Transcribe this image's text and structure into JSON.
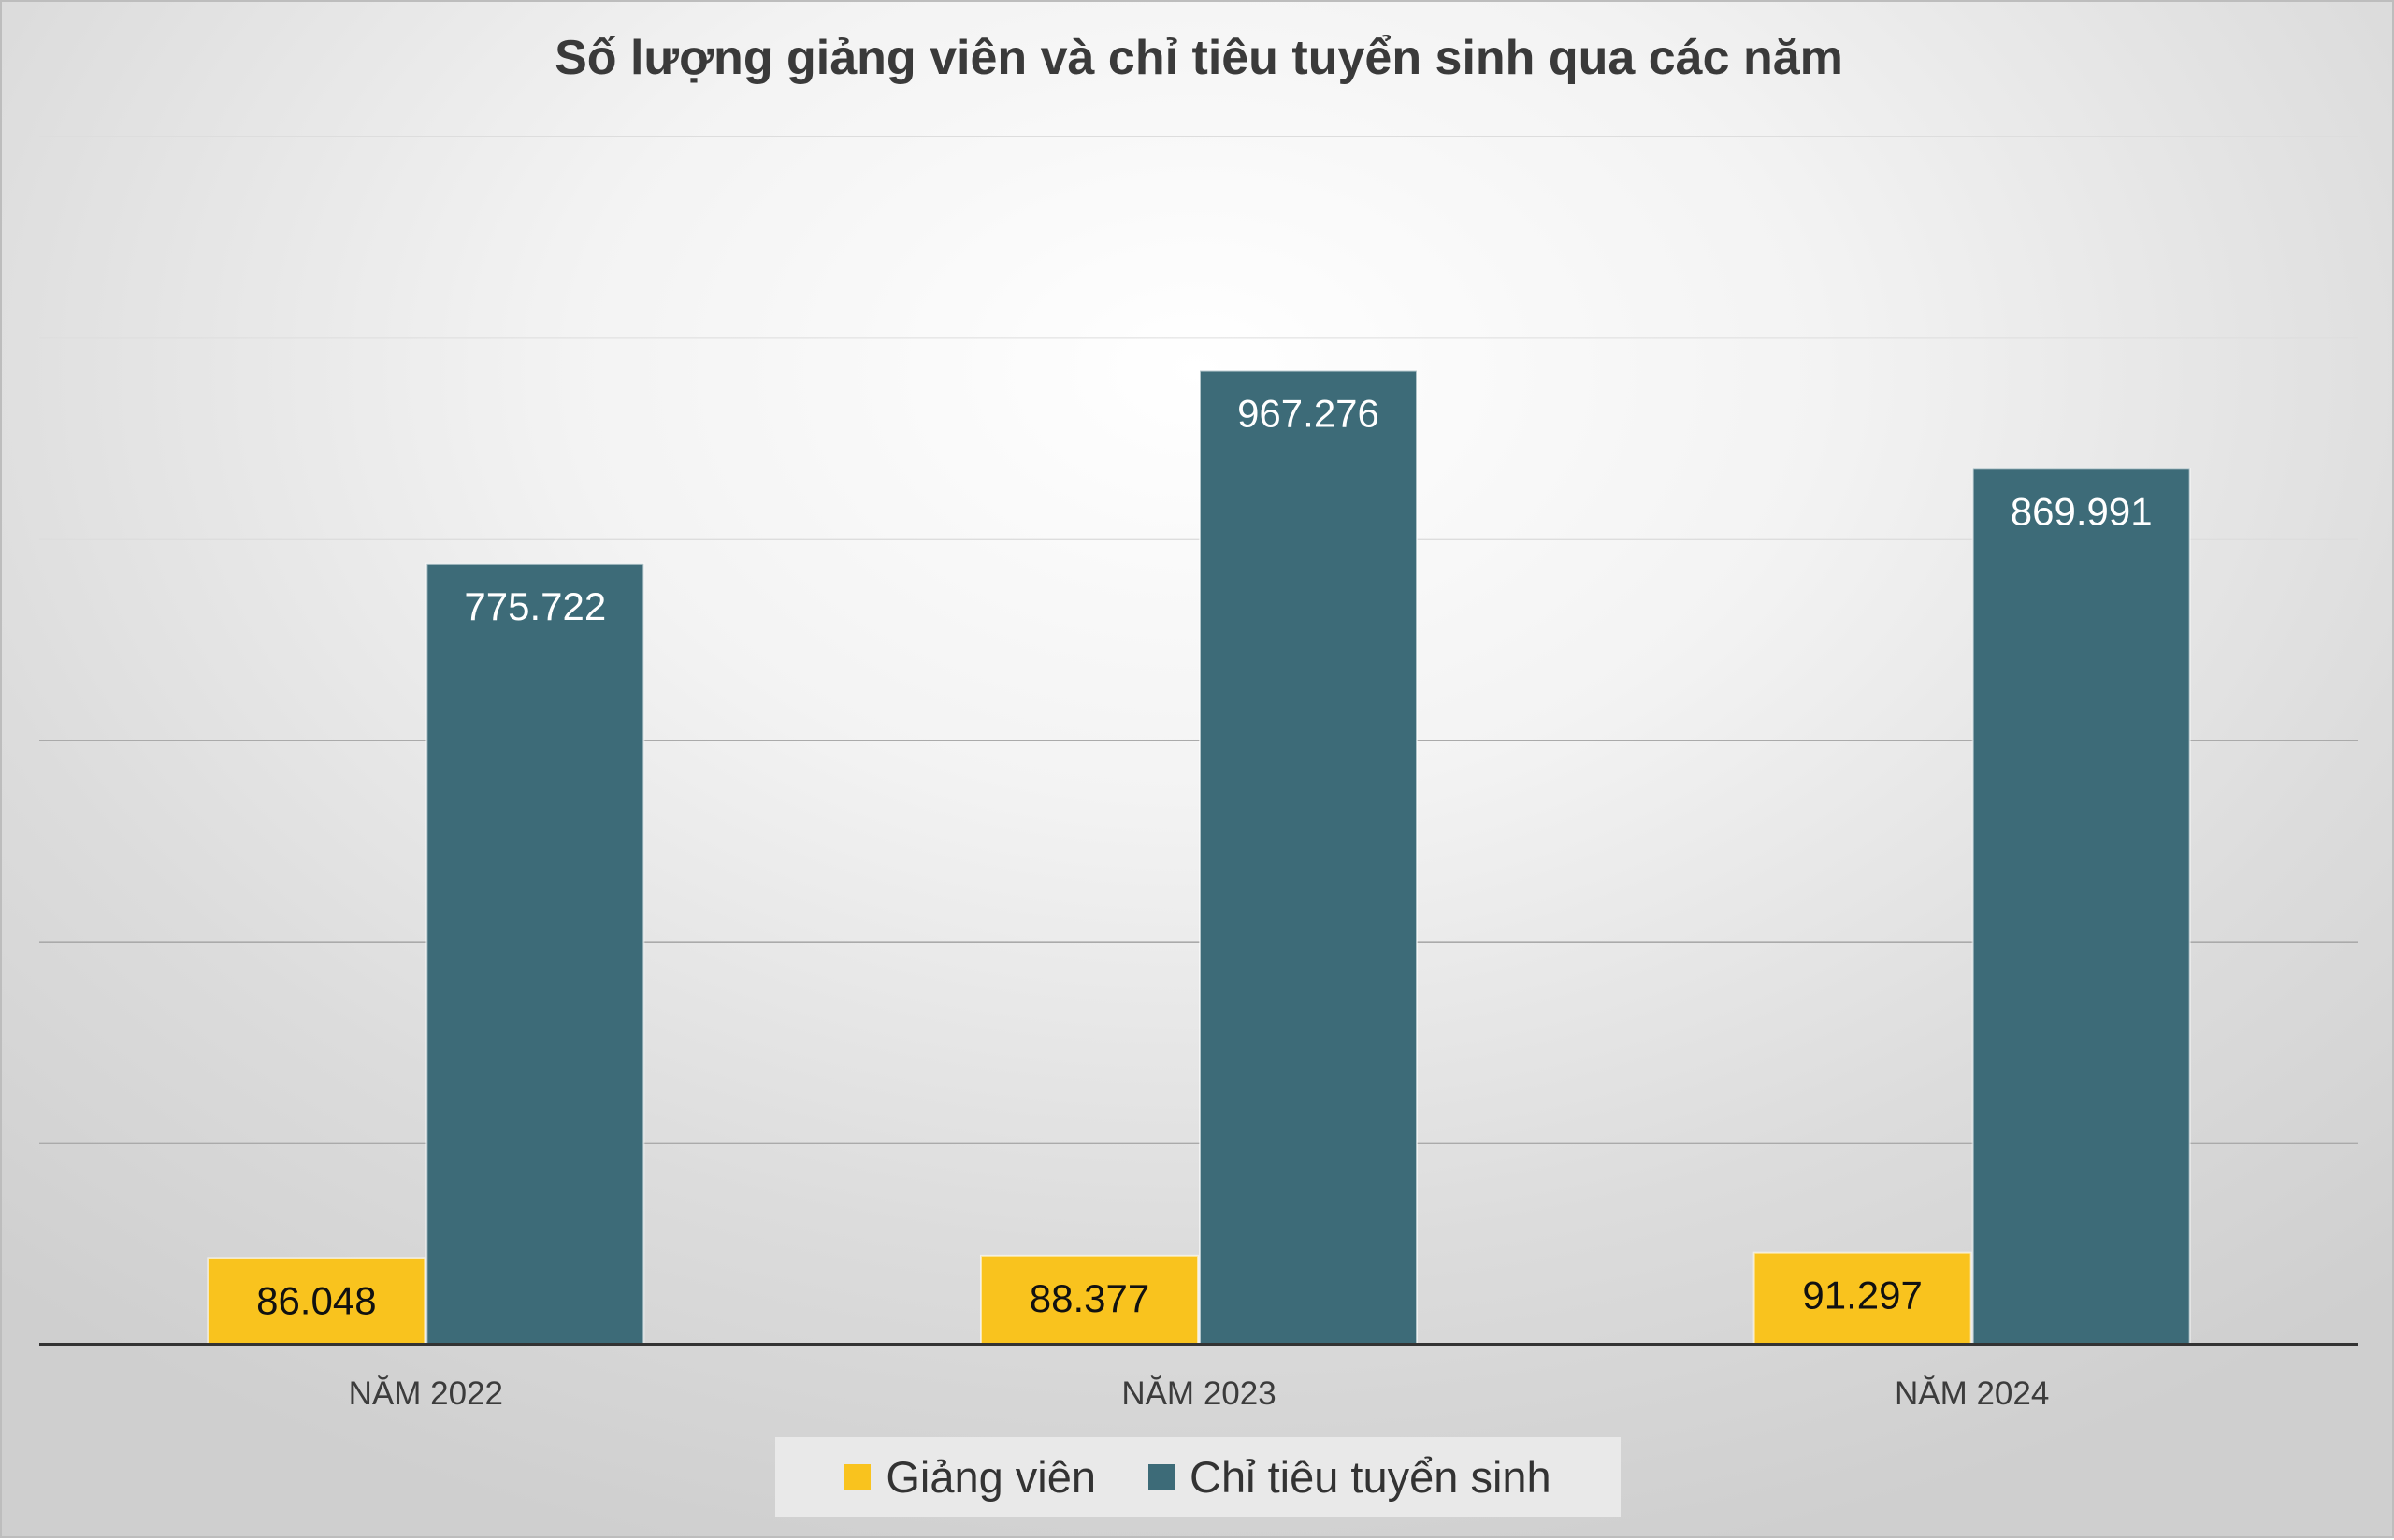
{
  "chart_data": {
    "type": "bar",
    "title": "Số lượng giảng viên và chỉ tiêu tuyển sinh qua các năm",
    "categories": [
      "NĂM 2022",
      "NĂM 2023",
      "NĂM 2024"
    ],
    "series": [
      {
        "name": "Giảng viên",
        "values": [
          86048,
          88377,
          91297
        ],
        "labels": [
          "86.048",
          "88.377",
          "91.297"
        ],
        "color": "#f9c31e",
        "label_color": "#111111"
      },
      {
        "name": "Chỉ tiêu tuyển sinh",
        "values": [
          775722,
          967276,
          869991
        ],
        "labels": [
          "775.722",
          "967.276",
          "869.991"
        ],
        "color": "#3d6b78",
        "label_color": "#ffffff"
      }
    ],
    "ylim": [
      0,
      1200000
    ],
    "y_gridline_step": 200000,
    "grid": true,
    "y_axis_labels_shown": false,
    "legend_position": "bottom"
  }
}
